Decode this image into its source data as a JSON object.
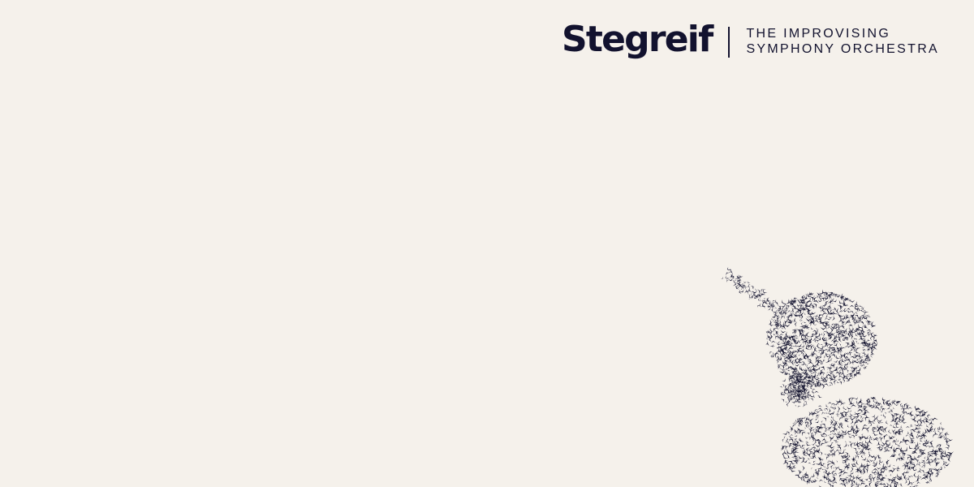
{
  "colors": {
    "background": "#f5f1eb",
    "ink": "#12122e"
  },
  "brand": {
    "name": "Stegreif",
    "tagline_line1": "THE IMPROVISING",
    "tagline_line2": "SYMPHONY ORCHESTRA"
  },
  "artwork": {
    "icon": "bird-flock-icon"
  }
}
